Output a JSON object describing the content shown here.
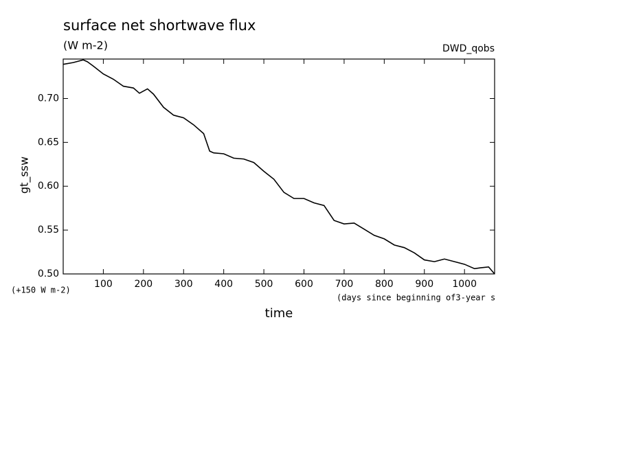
{
  "chart_data": {
    "type": "line",
    "title": "surface net shortwave flux",
    "subtitle": "(W m-2)",
    "dataset_label": "DWD_qobs",
    "y_label": "gt_ssw",
    "x_label": "time",
    "y_offset_note": "(+150 W m-2)",
    "x_unit_note": "(days since beginning of3-year s",
    "x": [
      0,
      25,
      50,
      60,
      75,
      100,
      125,
      150,
      175,
      190,
      210,
      225,
      250,
      275,
      300,
      325,
      350,
      365,
      375,
      400,
      425,
      450,
      475,
      500,
      525,
      550,
      575,
      600,
      625,
      650,
      675,
      700,
      725,
      750,
      775,
      800,
      825,
      850,
      875,
      900,
      925,
      950,
      975,
      1000,
      1025,
      1040,
      1060,
      1075
    ],
    "series": [
      {
        "color": "#000000",
        "values": [
          0.739,
          0.741,
          0.744,
          0.742,
          0.737,
          0.728,
          0.722,
          0.714,
          0.712,
          0.706,
          0.711,
          0.705,
          0.69,
          0.681,
          0.678,
          0.67,
          0.66,
          0.64,
          0.638,
          0.637,
          0.632,
          0.631,
          0.627,
          0.617,
          0.608,
          0.593,
          0.586,
          0.586,
          0.581,
          0.578,
          0.561,
          0.557,
          0.558,
          0.551,
          0.544,
          0.54,
          0.533,
          0.53,
          0.524,
          0.516,
          0.514,
          0.517,
          0.514,
          0.511,
          0.506,
          0.507,
          0.508,
          0.5
        ]
      }
    ],
    "xlim": [
      0,
      1075
    ],
    "ylim": [
      0.5,
      0.745
    ],
    "xticks": [
      100,
      200,
      300,
      400,
      500,
      600,
      700,
      800,
      900,
      1000
    ],
    "yticks": [
      {
        "value": 0.5,
        "label": "0.50"
      },
      {
        "value": 0.55,
        "label": "0.55"
      },
      {
        "value": 0.6,
        "label": "0.60"
      },
      {
        "value": 0.65,
        "label": "0.65"
      },
      {
        "value": 0.7,
        "label": "0.70"
      }
    ]
  }
}
